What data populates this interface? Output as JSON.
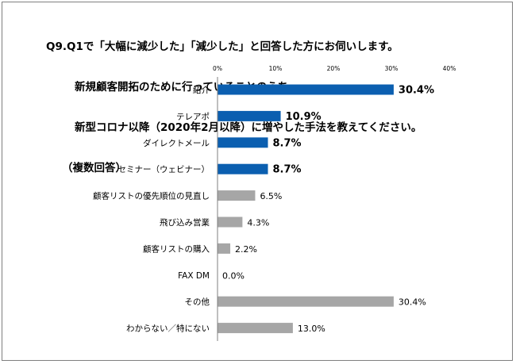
{
  "title_lines": [
    "Q9.Q1で「大幅に減少した」「減少した」と回答した方にお伺いします。",
    "新規顧客開拓のために行っていることのうち、",
    "新型コロナ以降（2020年2月以降）に増やした手法を教えてください。",
    "（複数回答）"
  ],
  "chart_data": {
    "type": "bar",
    "orientation": "horizontal",
    "title": "Q9.Q1で「大幅に減少した」「減少した」と回答した方にお伺いします。新規顧客開拓のために行っていることのうち、新型コロナ以降（2020年2月以降）に増やした手法を教えてください。（複数回答）",
    "categories": [
      "紹介",
      "テレアポ",
      "ダイレクトメール",
      "セミナー（ウェビナー）",
      "顧客リストの優先順位の見直し",
      "飛び込み営業",
      "顧客リストの購入",
      "FAX DM",
      "その他",
      "わからない／特にない"
    ],
    "values": [
      30.4,
      10.9,
      8.7,
      8.7,
      6.5,
      4.3,
      2.2,
      0.0,
      30.4,
      13.0
    ],
    "value_labels": [
      "30.4%",
      "10.9%",
      "8.7%",
      "8.7%",
      "6.5%",
      "4.3%",
      "2.2%",
      "0.0%",
      "30.4%",
      "13.0%"
    ],
    "highlighted": [
      true,
      true,
      true,
      true,
      false,
      false,
      false,
      false,
      false,
      false
    ],
    "x_ticks": [
      "0%",
      "10%",
      "20%",
      "30%",
      "40%"
    ],
    "xlim": [
      0,
      40
    ],
    "xlabel": "",
    "ylabel": "",
    "grid": false,
    "colors": {
      "highlight": "#0b5fb0",
      "normal": "#a6a6a6",
      "axis": "#7f7f7f"
    }
  }
}
